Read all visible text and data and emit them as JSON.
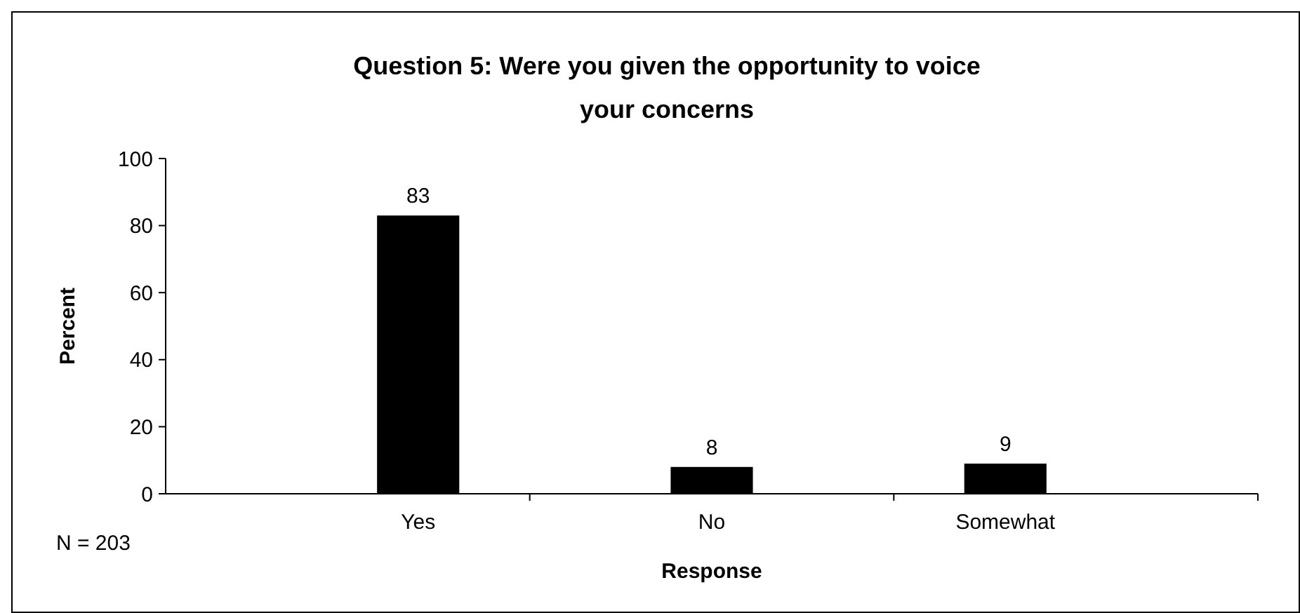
{
  "chart_data": {
    "type": "bar",
    "title": "Question 5: Were you given the opportunity to voice your concerns",
    "xlabel": "Response",
    "ylabel": "Percent",
    "categories": [
      "Yes",
      "No",
      "Somewhat"
    ],
    "values": [
      83,
      8,
      9
    ],
    "color": "#000000",
    "ylim": [
      0,
      100
    ],
    "yticks": [
      0,
      20,
      40,
      60,
      80,
      100
    ],
    "data_labels": true,
    "annotations": [
      "N = 203"
    ]
  }
}
